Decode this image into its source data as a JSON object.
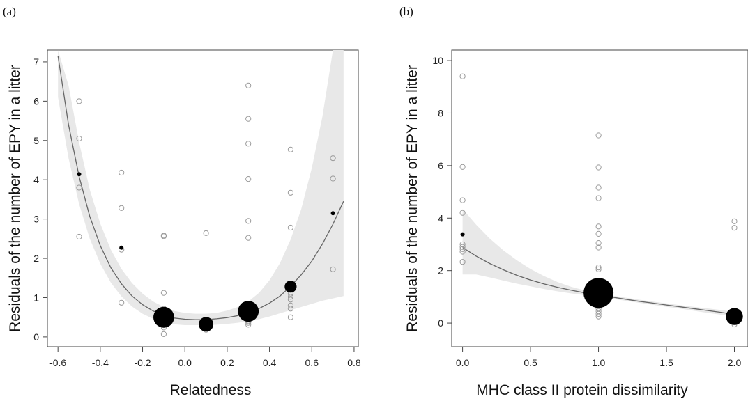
{
  "chart_data": [
    {
      "type": "scatter",
      "panel_label": "(a)",
      "xlabel": "Relatedness",
      "ylabel": "Residuals of the number of EPY in a litter",
      "xlim": [
        -0.65,
        0.82
      ],
      "ylim": [
        -0.25,
        7.3
      ],
      "xticks": [
        -0.6,
        -0.4,
        -0.2,
        0.0,
        0.2,
        0.4,
        0.6,
        0.8
      ],
      "xtick_labels": [
        "-0.6",
        "-0.4",
        "-0.2",
        "0.0",
        "0.2",
        "0.4",
        "0.6",
        "0.8"
      ],
      "yticks": [
        0,
        1,
        2,
        3,
        4,
        5,
        6,
        7
      ],
      "ytick_labels": [
        "0",
        "1",
        "2",
        "3",
        "4",
        "5",
        "6",
        "7"
      ],
      "grid": false,
      "colors": {
        "points_open": "#9a9a9a",
        "points_mean": "#000000",
        "fit_line": "#666666",
        "ci_band": "#e8e8e8"
      },
      "raw_points": [
        {
          "x": -0.5,
          "y": 6.0
        },
        {
          "x": -0.5,
          "y": 5.05
        },
        {
          "x": -0.5,
          "y": 3.8
        },
        {
          "x": -0.5,
          "y": 2.55
        },
        {
          "x": -0.3,
          "y": 4.18
        },
        {
          "x": -0.3,
          "y": 3.28
        },
        {
          "x": -0.3,
          "y": 2.22
        },
        {
          "x": -0.3,
          "y": 0.87
        },
        {
          "x": -0.1,
          "y": 2.58
        },
        {
          "x": -0.1,
          "y": 2.56
        },
        {
          "x": -0.1,
          "y": 1.12
        },
        {
          "x": -0.1,
          "y": 0.72
        },
        {
          "x": -0.1,
          "y": 0.62
        },
        {
          "x": -0.1,
          "y": 0.55
        },
        {
          "x": -0.1,
          "y": 0.48
        },
        {
          "x": -0.1,
          "y": 0.42
        },
        {
          "x": -0.1,
          "y": 0.35
        },
        {
          "x": -0.1,
          "y": 0.3
        },
        {
          "x": -0.1,
          "y": 0.24
        },
        {
          "x": -0.1,
          "y": 0.07
        },
        {
          "x": 0.1,
          "y": 2.64
        },
        {
          "x": 0.1,
          "y": 0.4
        },
        {
          "x": 0.1,
          "y": 0.33
        },
        {
          "x": 0.1,
          "y": 0.27
        },
        {
          "x": 0.1,
          "y": 0.22
        },
        {
          "x": 0.1,
          "y": 0.18
        },
        {
          "x": 0.3,
          "y": 6.4
        },
        {
          "x": 0.3,
          "y": 5.55
        },
        {
          "x": 0.3,
          "y": 4.92
        },
        {
          "x": 0.3,
          "y": 4.02
        },
        {
          "x": 0.3,
          "y": 2.95
        },
        {
          "x": 0.3,
          "y": 2.52
        },
        {
          "x": 0.3,
          "y": 0.58
        },
        {
          "x": 0.3,
          "y": 0.5
        },
        {
          "x": 0.3,
          "y": 0.45
        },
        {
          "x": 0.3,
          "y": 0.4
        },
        {
          "x": 0.3,
          "y": 0.36
        },
        {
          "x": 0.3,
          "y": 0.31
        },
        {
          "x": 0.5,
          "y": 4.77
        },
        {
          "x": 0.5,
          "y": 3.67
        },
        {
          "x": 0.5,
          "y": 2.78
        },
        {
          "x": 0.5,
          "y": 1.1
        },
        {
          "x": 0.5,
          "y": 1.02
        },
        {
          "x": 0.5,
          "y": 0.95
        },
        {
          "x": 0.5,
          "y": 0.8
        },
        {
          "x": 0.5,
          "y": 0.72
        },
        {
          "x": 0.5,
          "y": 0.5
        },
        {
          "x": 0.7,
          "y": 4.55
        },
        {
          "x": 0.7,
          "y": 4.03
        },
        {
          "x": 0.7,
          "y": 1.72
        }
      ],
      "mean_points": [
        {
          "x": -0.5,
          "y": 4.14,
          "n": 1
        },
        {
          "x": -0.3,
          "y": 2.27,
          "n": 1
        },
        {
          "x": -0.1,
          "y": 0.5,
          "n": 12
        },
        {
          "x": 0.1,
          "y": 0.32,
          "n": 6
        },
        {
          "x": 0.3,
          "y": 0.65,
          "n": 12
        },
        {
          "x": 0.5,
          "y": 1.28,
          "n": 4
        },
        {
          "x": 0.7,
          "y": 3.15,
          "n": 1
        }
      ],
      "fit": {
        "x": [
          -0.6,
          -0.55,
          -0.5,
          -0.45,
          -0.4,
          -0.35,
          -0.3,
          -0.25,
          -0.2,
          -0.15,
          -0.1,
          -0.05,
          0.0,
          0.05,
          0.1,
          0.15,
          0.2,
          0.25,
          0.3,
          0.35,
          0.4,
          0.45,
          0.5,
          0.55,
          0.6,
          0.65,
          0.7,
          0.75
        ],
        "y": [
          7.15,
          5.4,
          4.08,
          3.07,
          2.32,
          1.76,
          1.35,
          1.04,
          0.82,
          0.66,
          0.55,
          0.48,
          0.45,
          0.44,
          0.44,
          0.46,
          0.49,
          0.54,
          0.62,
          0.72,
          0.86,
          1.04,
          1.29,
          1.58,
          1.93,
          2.36,
          2.87,
          3.45
        ],
        "ci_lower": [
          6.1,
          4.55,
          3.38,
          2.5,
          1.86,
          1.38,
          1.03,
          0.77,
          0.59,
          0.46,
          0.37,
          0.32,
          0.3,
          0.3,
          0.3,
          0.31,
          0.33,
          0.36,
          0.4,
          0.45,
          0.52,
          0.6,
          0.68,
          0.76,
          0.84,
          0.92,
          0.98,
          1.04
        ],
        "ci_upper": [
          7.3,
          6.4,
          4.95,
          3.75,
          2.88,
          2.22,
          1.73,
          1.37,
          1.1,
          0.9,
          0.76,
          0.66,
          0.61,
          0.59,
          0.59,
          0.61,
          0.67,
          0.76,
          0.9,
          1.12,
          1.44,
          1.88,
          2.48,
          3.25,
          4.3,
          5.6,
          7.3,
          7.3
        ]
      }
    },
    {
      "type": "scatter",
      "panel_label": "(b)",
      "xlabel": "MHC class II protein dissimilarity",
      "ylabel": "Residuals of the number of EPY in a litter",
      "xlim": [
        -0.08,
        2.1
      ],
      "ylim": [
        -0.9,
        10.4
      ],
      "xticks": [
        0.0,
        0.5,
        1.0,
        1.5,
        2.0
      ],
      "xtick_labels": [
        "0.0",
        "0.5",
        "1.0",
        "1.5",
        "2.0"
      ],
      "yticks": [
        0,
        2,
        4,
        6,
        8,
        10
      ],
      "ytick_labels": [
        "0",
        "2",
        "4",
        "6",
        "8",
        "10"
      ],
      "grid": false,
      "colors": {
        "points_open": "#9a9a9a",
        "points_mean": "#000000",
        "fit_line": "#666666",
        "ci_band": "#e8e8e8"
      },
      "raw_points": [
        {
          "x": 0.0,
          "y": 9.4
        },
        {
          "x": 0.0,
          "y": 5.95
        },
        {
          "x": 0.0,
          "y": 4.68
        },
        {
          "x": 0.0,
          "y": 4.2
        },
        {
          "x": 0.0,
          "y": 3.0
        },
        {
          "x": 0.0,
          "y": 2.9
        },
        {
          "x": 0.0,
          "y": 2.82
        },
        {
          "x": 0.0,
          "y": 2.72
        },
        {
          "x": 0.0,
          "y": 2.33
        },
        {
          "x": 1.0,
          "y": 7.15
        },
        {
          "x": 1.0,
          "y": 5.93
        },
        {
          "x": 1.0,
          "y": 5.16
        },
        {
          "x": 1.0,
          "y": 4.76
        },
        {
          "x": 1.0,
          "y": 3.68
        },
        {
          "x": 1.0,
          "y": 3.4
        },
        {
          "x": 1.0,
          "y": 3.05
        },
        {
          "x": 1.0,
          "y": 2.88
        },
        {
          "x": 1.0,
          "y": 2.12
        },
        {
          "x": 1.0,
          "y": 2.05
        },
        {
          "x": 1.0,
          "y": 1.55
        },
        {
          "x": 1.0,
          "y": 1.4
        },
        {
          "x": 1.0,
          "y": 0.85
        },
        {
          "x": 1.0,
          "y": 0.75
        },
        {
          "x": 1.0,
          "y": 0.65
        },
        {
          "x": 1.0,
          "y": 0.55
        },
        {
          "x": 1.0,
          "y": 0.45
        },
        {
          "x": 1.0,
          "y": 0.35
        },
        {
          "x": 1.0,
          "y": 0.25
        },
        {
          "x": 2.0,
          "y": 3.88
        },
        {
          "x": 2.0,
          "y": 3.63
        },
        {
          "x": 2.0,
          "y": 0.3
        },
        {
          "x": 2.0,
          "y": 0.2
        },
        {
          "x": 2.0,
          "y": 0.1
        },
        {
          "x": 2.0,
          "y": -0.05
        }
      ],
      "mean_points": [
        {
          "x": 0.0,
          "y": 3.38,
          "n": 1
        },
        {
          "x": 1.0,
          "y": 1.15,
          "n": 25
        },
        {
          "x": 2.0,
          "y": 0.25,
          "n": 8
        }
      ],
      "fit": {
        "x": [
          0.0,
          0.1,
          0.2,
          0.3,
          0.4,
          0.5,
          0.6,
          0.7,
          0.8,
          0.9,
          1.0,
          1.1,
          1.2,
          1.3,
          1.4,
          1.5,
          1.6,
          1.7,
          1.8,
          1.9,
          2.0
        ],
        "y": [
          2.88,
          2.55,
          2.27,
          2.03,
          1.82,
          1.64,
          1.49,
          1.36,
          1.25,
          1.15,
          1.07,
          0.99,
          0.91,
          0.83,
          0.76,
          0.69,
          0.62,
          0.55,
          0.48,
          0.41,
          0.33
        ],
        "ci_lower": [
          1.85,
          1.85,
          1.74,
          1.62,
          1.5,
          1.4,
          1.3,
          1.21,
          1.13,
          1.06,
          1.0,
          0.93,
          0.85,
          0.77,
          0.7,
          0.62,
          0.55,
          0.47,
          0.39,
          0.32,
          0.24
        ],
        "ci_upper": [
          4.35,
          3.75,
          3.22,
          2.77,
          2.39,
          2.06,
          1.79,
          1.56,
          1.38,
          1.24,
          1.14,
          1.05,
          0.97,
          0.89,
          0.82,
          0.75,
          0.68,
          0.62,
          0.56,
          0.5,
          0.43
        ]
      }
    }
  ]
}
